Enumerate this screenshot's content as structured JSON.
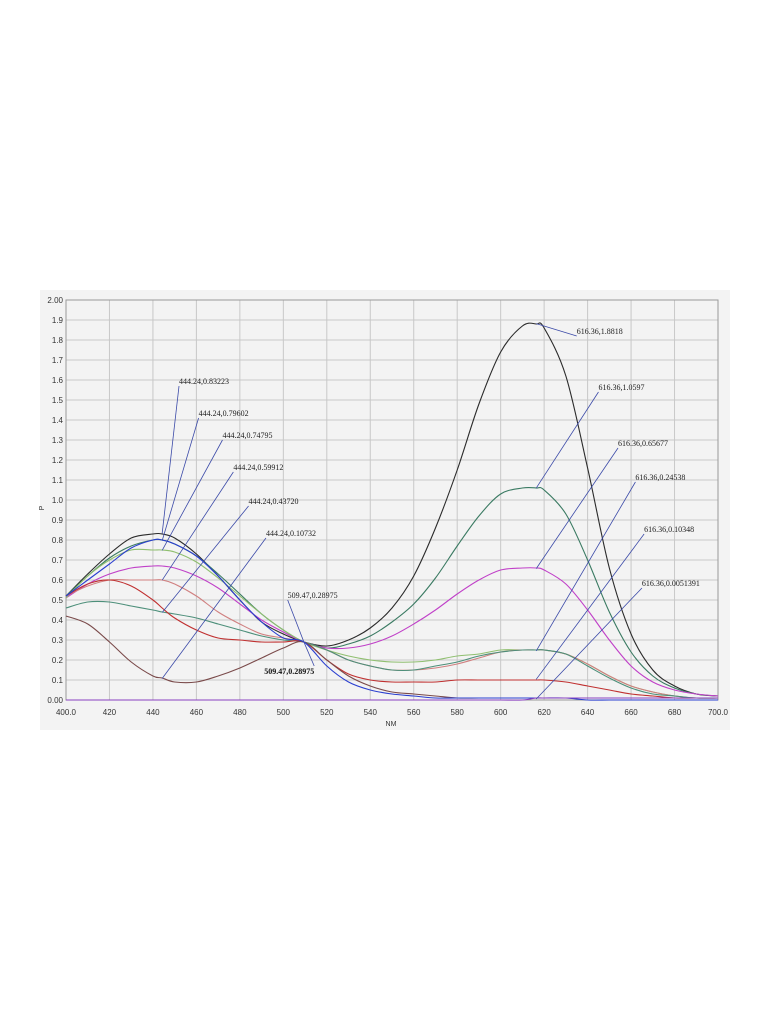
{
  "chart_data": {
    "type": "line",
    "title": "",
    "xlabel": "NM",
    "ylabel": "P",
    "xlim": [
      400,
      700
    ],
    "ylim": [
      0,
      2
    ],
    "grid": true,
    "legend": "none",
    "x_ticks": [
      "400.0",
      "420",
      "440",
      "460",
      "480",
      "500",
      "520",
      "540",
      "560",
      "580",
      "600",
      "620",
      "640",
      "660",
      "680",
      "700.0"
    ],
    "y_ticks": [
      "0.00",
      "0.1",
      "0.2",
      "0.3",
      "0.4",
      "0.5",
      "0.6",
      "0.7",
      "0.8",
      "0.9",
      "1.0",
      "1.1",
      "1.2",
      "1.3",
      "1.4",
      "1.5",
      "1.6",
      "1.7",
      "1.8",
      "1.9",
      "2.00"
    ],
    "x": [
      400,
      410,
      420,
      430,
      440,
      444.24,
      450,
      460,
      470,
      480,
      490,
      500,
      509.47,
      520,
      530,
      540,
      550,
      560,
      570,
      580,
      590,
      600,
      610,
      616.36,
      620,
      630,
      640,
      650,
      660,
      670,
      680,
      690,
      700
    ],
    "series": [
      {
        "color": "#2b2b2b",
        "values": [
          0.52,
          0.63,
          0.73,
          0.81,
          0.83,
          0.83,
          0.81,
          0.73,
          0.62,
          0.5,
          0.39,
          0.33,
          0.29,
          0.27,
          0.3,
          0.36,
          0.46,
          0.62,
          0.86,
          1.15,
          1.48,
          1.74,
          1.87,
          1.88,
          1.86,
          1.62,
          1.16,
          0.66,
          0.33,
          0.15,
          0.07,
          0.03,
          0.02
        ]
      },
      {
        "color": "#3a7a62",
        "values": [
          0.52,
          0.62,
          0.71,
          0.77,
          0.8,
          0.8,
          0.78,
          0.72,
          0.63,
          0.53,
          0.43,
          0.35,
          0.29,
          0.26,
          0.28,
          0.32,
          0.39,
          0.48,
          0.61,
          0.77,
          0.92,
          1.03,
          1.06,
          1.06,
          1.05,
          0.93,
          0.7,
          0.44,
          0.24,
          0.12,
          0.06,
          0.03,
          0.02
        ]
      },
      {
        "color": "#c040c8",
        "values": [
          0.51,
          0.58,
          0.63,
          0.66,
          0.67,
          0.67,
          0.66,
          0.62,
          0.56,
          0.48,
          0.4,
          0.34,
          0.29,
          0.26,
          0.26,
          0.28,
          0.32,
          0.38,
          0.45,
          0.53,
          0.6,
          0.65,
          0.66,
          0.66,
          0.65,
          0.58,
          0.45,
          0.3,
          0.17,
          0.09,
          0.05,
          0.03,
          0.02
        ]
      },
      {
        "color": "#8fbf6f",
        "values": [
          0.51,
          0.62,
          0.7,
          0.75,
          0.75,
          0.75,
          0.74,
          0.69,
          0.61,
          0.52,
          0.43,
          0.35,
          0.29,
          0.25,
          0.22,
          0.2,
          0.19,
          0.19,
          0.2,
          0.22,
          0.23,
          0.25,
          0.25,
          0.25,
          0.25,
          0.23,
          0.18,
          0.12,
          0.07,
          0.04,
          0.02,
          0.01,
          0.01
        ]
      },
      {
        "color": "#d08080",
        "values": [
          0.52,
          0.57,
          0.6,
          0.6,
          0.6,
          0.6,
          0.58,
          0.52,
          0.44,
          0.38,
          0.33,
          0.31,
          0.29,
          0.25,
          0.2,
          0.17,
          0.15,
          0.15,
          0.16,
          0.18,
          0.21,
          0.24,
          0.25,
          0.25,
          0.25,
          0.23,
          0.18,
          0.12,
          0.07,
          0.04,
          0.02,
          0.01,
          0.01
        ]
      },
      {
        "color": "#4d8f7a",
        "values": [
          0.46,
          0.49,
          0.49,
          0.47,
          0.45,
          0.44,
          0.43,
          0.41,
          0.38,
          0.35,
          0.32,
          0.3,
          0.29,
          0.25,
          0.2,
          0.17,
          0.15,
          0.15,
          0.17,
          0.19,
          0.22,
          0.24,
          0.25,
          0.25,
          0.25,
          0.23,
          0.17,
          0.11,
          0.06,
          0.03,
          0.02,
          0.01,
          0.01
        ]
      },
      {
        "color": "#c03030",
        "values": [
          0.52,
          0.58,
          0.6,
          0.57,
          0.5,
          0.46,
          0.41,
          0.35,
          0.31,
          0.3,
          0.29,
          0.29,
          0.29,
          0.2,
          0.13,
          0.1,
          0.09,
          0.09,
          0.09,
          0.1,
          0.1,
          0.1,
          0.1,
          0.1,
          0.1,
          0.09,
          0.07,
          0.05,
          0.03,
          0.02,
          0.01,
          0.01,
          0.01
        ]
      },
      {
        "color": "#7a4a4a",
        "values": [
          0.42,
          0.38,
          0.29,
          0.19,
          0.12,
          0.11,
          0.09,
          0.09,
          0.12,
          0.16,
          0.21,
          0.26,
          0.29,
          0.2,
          0.12,
          0.07,
          0.04,
          0.03,
          0.02,
          0.01,
          0.01,
          0.01,
          0.01,
          0.01,
          0.01,
          0.01,
          0.01,
          0.01,
          0.01,
          0.01,
          0.01,
          0.01,
          0.01
        ]
      },
      {
        "color": "#2a3fd0",
        "values": [
          0.52,
          0.6,
          0.68,
          0.76,
          0.8,
          0.8,
          0.78,
          0.72,
          0.62,
          0.5,
          0.39,
          0.31,
          0.29,
          0.17,
          0.09,
          0.05,
          0.03,
          0.02,
          0.01,
          0.01,
          0.01,
          0.01,
          0.01,
          0.01,
          0.01,
          0.01,
          0.0,
          0.0,
          0.0,
          0.0,
          0.0,
          0.0,
          0.0
        ]
      },
      {
        "color": "#8a40c0",
        "values": [
          0.0,
          0.0,
          0.0,
          0.0,
          0.0,
          0.0,
          0.0,
          0.0,
          0.0,
          0.0,
          0.0,
          0.0,
          0.0,
          0.0,
          0.0,
          0.0,
          0.0,
          0.0,
          0.0,
          0.0,
          0.0,
          0.0,
          0.0,
          0.01,
          0.01,
          0.01,
          0.01,
          0.01,
          0.01,
          0.01,
          0.01,
          0.01,
          0.01
        ]
      }
    ],
    "annotations": [
      {
        "text": "444.24,0.83223",
        "x": 444.24,
        "y": 0.83223,
        "lx": 452,
        "ly": 1.58
      },
      {
        "text": "444.24,0.79602",
        "x": 444.24,
        "y": 0.79602,
        "lx": 461,
        "ly": 1.42
      },
      {
        "text": "444.24,0.74795",
        "x": 444.24,
        "y": 0.74795,
        "lx": 472,
        "ly": 1.31
      },
      {
        "text": "444.24,0.59912",
        "x": 444.24,
        "y": 0.59912,
        "lx": 477,
        "ly": 1.15
      },
      {
        "text": "444.24,0.43720",
        "x": 444.24,
        "y": 0.4372,
        "lx": 484,
        "ly": 0.98
      },
      {
        "text": "444.24,0.10732",
        "x": 444.24,
        "y": 0.10732,
        "lx": 492,
        "ly": 0.82
      },
      {
        "text": "509.47,0.28975",
        "x": 509.47,
        "y": 0.28975,
        "lx": 502,
        "ly": 0.51
      },
      {
        "text": "616.36,1.8818",
        "x": 616.36,
        "y": 1.8818,
        "lx": 635,
        "ly": 1.83
      },
      {
        "text": "616.36,1.0597",
        "x": 616.36,
        "y": 1.0597,
        "lx": 645,
        "ly": 1.55
      },
      {
        "text": "616.36,0.65677",
        "x": 616.36,
        "y": 0.65677,
        "lx": 654,
        "ly": 1.27
      },
      {
        "text": "616.36,0.24538",
        "x": 616.36,
        "y": 0.24538,
        "lx": 662,
        "ly": 1.1
      },
      {
        "text": "616.36,0.10348",
        "x": 616.36,
        "y": 0.10348,
        "lx": 666,
        "ly": 0.84
      },
      {
        "text": "616.36,0.0051391",
        "x": 616.36,
        "y": 0.0051391,
        "lx": 665,
        "ly": 0.57
      }
    ],
    "bold_annotation": {
      "text": "509.47,0.28975",
      "x": 509.47,
      "y": 0.28975,
      "lx": 505,
      "ly": 0.13
    }
  }
}
